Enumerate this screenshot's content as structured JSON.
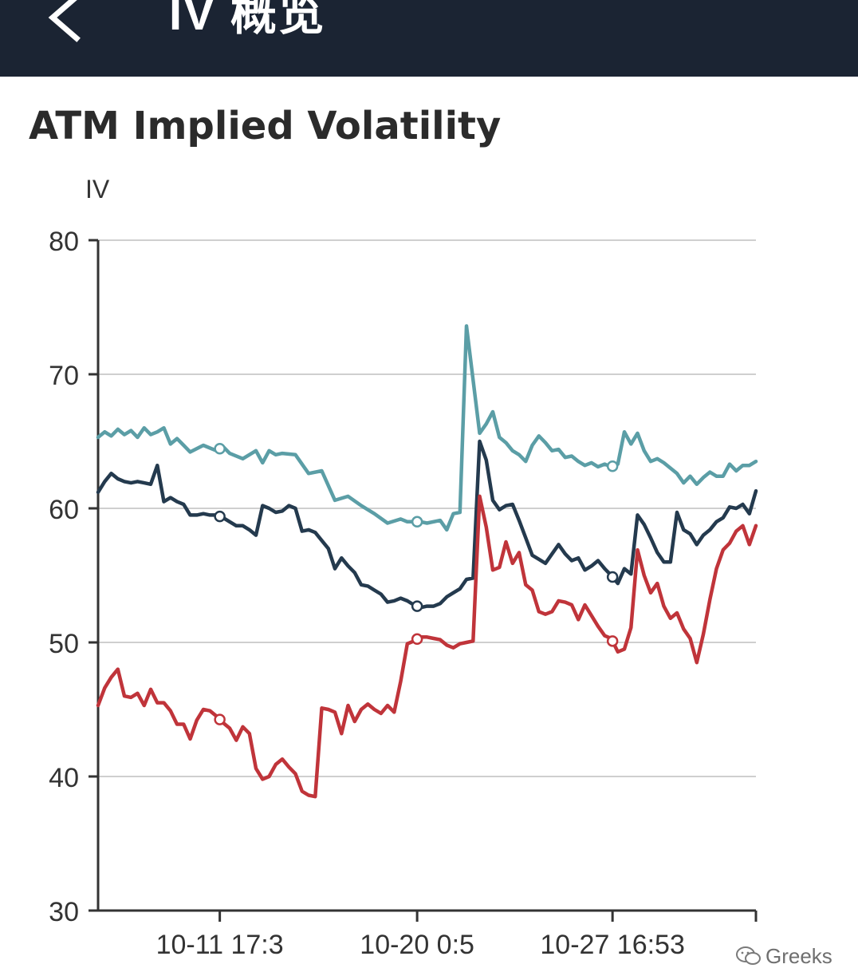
{
  "header": {
    "title": "IV 概览",
    "bg_color": "#1b2433"
  },
  "watermark": "Greeks",
  "chart_data": {
    "type": "line",
    "title": "ATM Implied Volatility",
    "ylabel": "IV",
    "xlabel": "",
    "ylim": [
      30,
      80
    ],
    "yticks": [
      30,
      40,
      50,
      60,
      70,
      80
    ],
    "grid": true,
    "xlim": [
      0,
      100
    ],
    "xticks": [
      {
        "x": 18.5,
        "label": "10-11 17:3"
      },
      {
        "x": 48.5,
        "label": "10-20 0:5"
      },
      {
        "x": 78.2,
        "label": "10-27 16:53"
      },
      {
        "x": 100,
        "label": ""
      }
    ],
    "series": [
      {
        "color": "#5b9ea6",
        "marker_x": [
          18.5,
          48.5,
          78.2
        ],
        "x": [
          0,
          1,
          2,
          3,
          4,
          5,
          6,
          7,
          8,
          9,
          10,
          11,
          12,
          13,
          14,
          16,
          18,
          19,
          20,
          22,
          24,
          25,
          26,
          27,
          28,
          30,
          32,
          34,
          36,
          38,
          40,
          42,
          44,
          46,
          47,
          48,
          49,
          50,
          52,
          53,
          54,
          55,
          56,
          58,
          59,
          60,
          61,
          62,
          63,
          64,
          65,
          66,
          67,
          68,
          69,
          70,
          71,
          72,
          73,
          74,
          75,
          76,
          77,
          78,
          79,
          80,
          81,
          82,
          83,
          84,
          85,
          86,
          87,
          88,
          89,
          90,
          91,
          92,
          93,
          94,
          95,
          96,
          97,
          98,
          99,
          100
        ],
        "values": [
          65.3,
          65.7,
          65.4,
          65.9,
          65.5,
          65.8,
          65.3,
          66.0,
          65.5,
          65.7,
          66.0,
          64.8,
          65.2,
          64.7,
          64.2,
          64.7,
          64.3,
          64.6,
          64.1,
          63.7,
          64.3,
          63.4,
          64.3,
          64.0,
          64.1,
          64.0,
          62.6,
          62.8,
          60.6,
          60.9,
          60.2,
          59.6,
          58.9,
          59.2,
          59.0,
          59.0,
          59.0,
          58.9,
          59.1,
          58.4,
          59.6,
          59.7,
          73.6,
          65.6,
          66.3,
          67.2,
          65.3,
          64.9,
          64.3,
          64.0,
          63.5,
          64.7,
          65.4,
          64.9,
          64.3,
          64.4,
          63.8,
          63.9,
          63.5,
          63.2,
          63.4,
          63.1,
          63.3,
          63.1,
          63.3,
          65.7,
          64.8,
          65.6,
          64.3,
          63.5,
          63.7,
          63.4,
          63.0,
          62.6,
          61.9,
          62.4,
          61.8,
          62.3,
          62.7,
          62.4,
          62.4,
          63.3,
          62.8,
          63.2,
          63.2,
          63.5
        ]
      },
      {
        "color": "#243a4e",
        "marker_x": [
          18.5,
          48.5,
          78.2
        ],
        "x": [
          0,
          1,
          2,
          3,
          4,
          5,
          6,
          7,
          8,
          9,
          10,
          11,
          12,
          13,
          14,
          15,
          16,
          17,
          18,
          19,
          20,
          21,
          22,
          23,
          24,
          25,
          26,
          27,
          28,
          29,
          30,
          31,
          32,
          33,
          34,
          35,
          36,
          37,
          38,
          39,
          40,
          41,
          42,
          43,
          44,
          45,
          46,
          47,
          48,
          49,
          50,
          51,
          52,
          53,
          54,
          55,
          56,
          57,
          58,
          59,
          60,
          61,
          62,
          63,
          64,
          65,
          66,
          67,
          68,
          69,
          70,
          71,
          72,
          73,
          74,
          75,
          76,
          77,
          78,
          79,
          80,
          81,
          82,
          83,
          84,
          85,
          86,
          87,
          88,
          89,
          90,
          91,
          92,
          93,
          94,
          95,
          96,
          97,
          98,
          99,
          100
        ],
        "values": [
          61.2,
          62.0,
          62.6,
          62.2,
          62.0,
          61.9,
          62.0,
          61.9,
          61.8,
          63.2,
          60.5,
          60.8,
          60.5,
          60.3,
          59.5,
          59.5,
          59.6,
          59.5,
          59.5,
          59.3,
          59.0,
          58.7,
          58.7,
          58.4,
          58.0,
          60.2,
          60.0,
          59.7,
          59.8,
          60.2,
          60.0,
          58.3,
          58.4,
          58.2,
          57.6,
          57.0,
          55.5,
          56.3,
          55.7,
          55.2,
          54.3,
          54.2,
          53.9,
          53.6,
          53.0,
          53.1,
          53.3,
          53.1,
          52.8,
          52.6,
          52.7,
          52.7,
          52.9,
          53.4,
          53.7,
          54.0,
          54.7,
          54.8,
          65.0,
          63.6,
          60.6,
          59.9,
          60.2,
          60.3,
          59.1,
          57.8,
          56.5,
          56.2,
          55.9,
          56.6,
          57.3,
          56.6,
          56.1,
          56.3,
          55.4,
          55.7,
          56.1,
          55.5,
          55.0,
          54.4,
          55.5,
          55.1,
          59.5,
          58.8,
          57.8,
          56.7,
          56.0,
          56.0,
          59.7,
          58.4,
          58.1,
          57.3,
          58.0,
          58.4,
          59.0,
          59.3,
          60.1,
          60.0,
          60.3,
          59.6,
          61.3
        ]
      },
      {
        "color": "#c0343a",
        "marker_x": [
          18.5,
          48.5,
          78.2
        ],
        "x": [
          0,
          1,
          2,
          3,
          4,
          5,
          6,
          7,
          8,
          9,
          10,
          11,
          12,
          13,
          14,
          15,
          16,
          17,
          18,
          19,
          20,
          21,
          22,
          23,
          24,
          25,
          26,
          27,
          28,
          29,
          30,
          31,
          32,
          33,
          34,
          35,
          36,
          37,
          38,
          39,
          40,
          41,
          42,
          43,
          44,
          45,
          46,
          47,
          48,
          49,
          50,
          51,
          52,
          53,
          54,
          55,
          56,
          57,
          58,
          59,
          60,
          61,
          62,
          63,
          64,
          65,
          66,
          67,
          68,
          69,
          70,
          71,
          72,
          73,
          74,
          75,
          76,
          77,
          78,
          79,
          80,
          81,
          82,
          83,
          84,
          85,
          86,
          87,
          88,
          89,
          90,
          91,
          92,
          93,
          94,
          95,
          96,
          97,
          98,
          99,
          100
        ],
        "values": [
          45.3,
          46.6,
          47.4,
          48.0,
          46.0,
          45.9,
          46.2,
          45.3,
          46.5,
          45.5,
          45.5,
          44.9,
          43.9,
          43.9,
          42.8,
          44.2,
          45.0,
          44.9,
          44.5,
          44.0,
          43.6,
          42.7,
          43.7,
          43.2,
          40.6,
          39.8,
          40.0,
          40.9,
          41.3,
          40.7,
          40.2,
          38.9,
          38.6,
          38.5,
          45.1,
          45.0,
          44.8,
          43.2,
          45.3,
          44.1,
          45.0,
          45.4,
          45.0,
          44.7,
          45.3,
          44.8,
          47.1,
          49.9,
          50.1,
          50.4,
          50.4,
          50.3,
          50.2,
          49.8,
          49.6,
          49.9,
          50.0,
          50.1,
          60.9,
          58.6,
          55.4,
          55.6,
          57.5,
          55.9,
          56.7,
          54.3,
          53.9,
          52.3,
          52.1,
          52.3,
          53.1,
          53.0,
          52.8,
          51.7,
          52.8,
          52.0,
          51.2,
          50.5,
          50.3,
          49.3,
          49.5,
          51.1,
          56.9,
          55.0,
          53.7,
          54.4,
          52.7,
          51.8,
          52.2,
          51.0,
          50.3,
          48.5,
          50.6,
          53.2,
          55.5,
          56.9,
          57.4,
          58.3,
          58.7,
          57.3,
          58.7
        ]
      }
    ]
  }
}
